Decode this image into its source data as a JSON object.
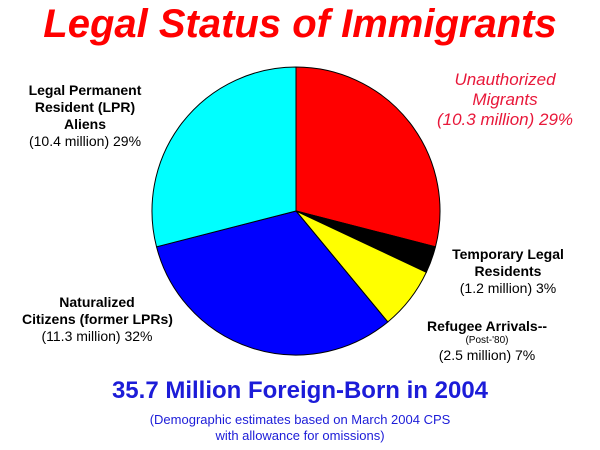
{
  "chart_data": {
    "type": "pie",
    "title": "Legal Status of Immigrants",
    "slices": [
      {
        "name": "Unauthorized Migrants",
        "amount": "(10.3 million)",
        "percent": 29,
        "pct_label": "29%",
        "color": "#ff0000"
      },
      {
        "name": "Temporary Legal Residents",
        "amount": "(1.2 million)",
        "percent": 3,
        "pct_label": "3%",
        "color": "#000000"
      },
      {
        "name": "Refugee Arrivals--",
        "sub": "(Post-'80)",
        "amount": "(2.5 million)",
        "percent": 7,
        "pct_label": "7%",
        "color": "#ffff00"
      },
      {
        "name": "Naturalized Citizens (former LPRs)",
        "amount": "(11.3 million)",
        "percent": 32,
        "pct_label": "32%",
        "color": "#0000ff"
      },
      {
        "name": "Legal Permanent Resident (LPR) Aliens",
        "amount": "(10.4 million)",
        "percent": 29,
        "pct_label": "29%",
        "color": "#00ffff"
      }
    ]
  },
  "labels": {
    "unauth": {
      "line1": "Unauthorized",
      "line2": "Migrants",
      "value": "(10.3 million)  29%"
    },
    "lpr": {
      "line1": "Legal Permanent",
      "line2": "Resident (LPR)",
      "line3": "Aliens",
      "value": "(10.4 million)  29%"
    },
    "temp": {
      "line1": "Temporary Legal",
      "line2": "Residents",
      "value": "(1.2 million)  3%"
    },
    "refugee": {
      "line1": "Refugee Arrivals--",
      "sub": "(Post-'80)",
      "value": "(2.5 million)  7%"
    },
    "nat": {
      "line1": "Naturalized",
      "line2": "Citizens (former LPRs)",
      "value": "(11.3 million)  32%"
    }
  },
  "footer": {
    "headline": "35.7 Million Foreign-Born in 2004",
    "note_line1": "(Demographic estimates based on March 2004 CPS",
    "note_line2": "with allowance for omissions)"
  }
}
